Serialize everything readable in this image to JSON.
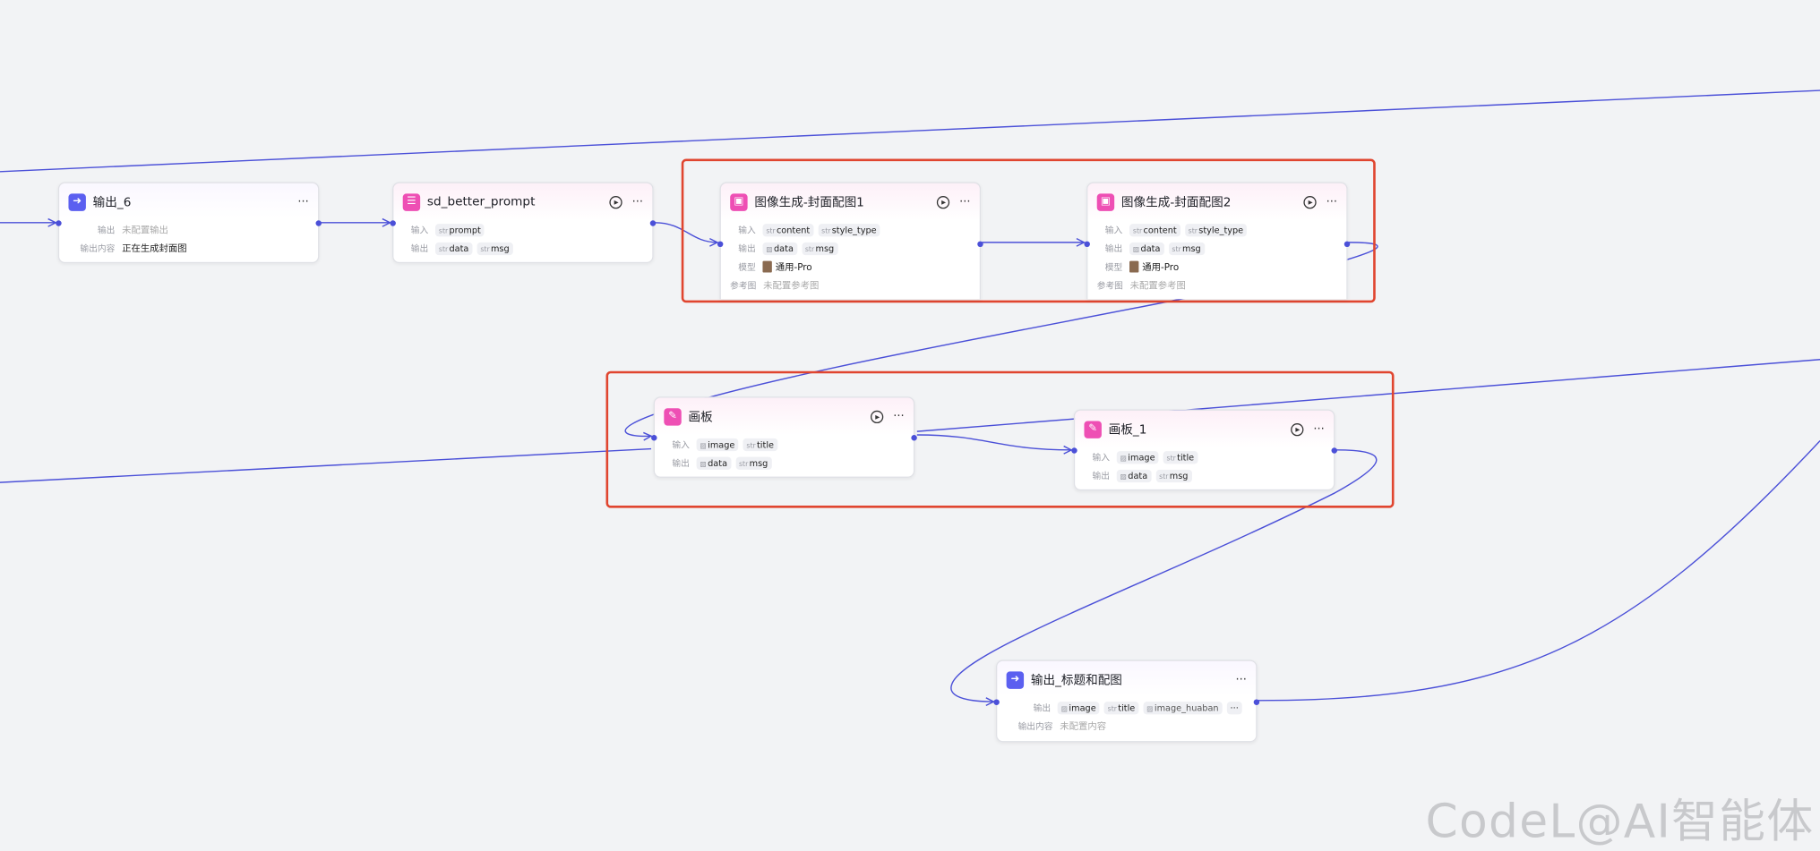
{
  "nodes": {
    "output6": {
      "title": "输出_6",
      "out_label": "输出",
      "out_value": "未配置输出",
      "content_label": "输出内容",
      "content_value": "正在生成封面图",
      "icon": "output-arrow-icon"
    },
    "sd": {
      "title": "sd_better_prompt",
      "in_label": "输入",
      "inputs": [
        "prompt"
      ],
      "out_label": "输出",
      "outputs": [
        "data",
        "msg"
      ],
      "icon": "list-icon"
    },
    "img1": {
      "title": "图像生成-封面配图1",
      "in_label": "输入",
      "inputs": [
        "content",
        "style_type"
      ],
      "out_label": "输出",
      "outputs": [
        "data",
        "msg"
      ],
      "model_label": "模型",
      "model": "通用-Pro",
      "ref_label": "参考图",
      "ref_value": "未配置参考图",
      "icon": "image-gen-icon"
    },
    "img2": {
      "title": "图像生成-封面配图2",
      "in_label": "输入",
      "inputs": [
        "content",
        "style_type"
      ],
      "out_label": "输出",
      "outputs": [
        "data",
        "msg"
      ],
      "model_label": "模型",
      "model": "通用-Pro",
      "ref_label": "参考图",
      "ref_value": "未配置参考图",
      "icon": "image-gen-icon"
    },
    "board": {
      "title": "画板",
      "in_label": "输入",
      "inputs": [
        "image",
        "title"
      ],
      "out_label": "输出",
      "outputs": [
        "data",
        "msg"
      ],
      "icon": "canvas-icon"
    },
    "board1": {
      "title": "画板_1",
      "in_label": "输入",
      "inputs": [
        "image",
        "title"
      ],
      "out_label": "输出",
      "outputs": [
        "data",
        "msg"
      ],
      "icon": "canvas-icon"
    },
    "outfinal": {
      "title": "输出_标题和配图",
      "out_label": "输出",
      "outputs": [
        "image",
        "title",
        "image_huaban"
      ],
      "content_label": "输出内容",
      "content_value": "未配置内容",
      "icon": "output-arrow-icon"
    }
  },
  "type_tag": "str",
  "watermark": "CodeL@AI智能体",
  "colors": {
    "edge": "#4b50d8",
    "highlight": "#e0452f",
    "canvas": "#f2f3f5"
  }
}
